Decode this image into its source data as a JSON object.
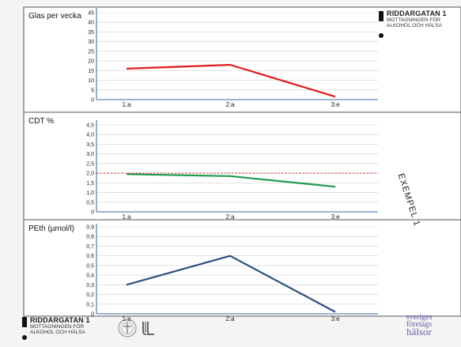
{
  "chart_data": [
    {
      "type": "line",
      "title": "Glas per vecka",
      "categories": [
        "1:a",
        "2:a",
        "3:e"
      ],
      "yticks": [
        "0",
        "5",
        "10",
        "15",
        "20",
        "25",
        "30",
        "35",
        "40",
        "45"
      ],
      "ylim": [
        0,
        45
      ],
      "series": [
        {
          "values": [
            16,
            18,
            1.5
          ]
        }
      ],
      "colors": {
        "line": "#e01a1a"
      },
      "grid": true
    },
    {
      "type": "line",
      "title": "CDT %",
      "categories": [
        "1:a",
        "2:a",
        "3:e"
      ],
      "yticks": [
        "0",
        "0,5",
        "1,0",
        "1,5",
        "2,0",
        "2,5",
        "3,0",
        "3,5",
        "4,0",
        "4,5"
      ],
      "ylim": [
        0,
        4.5
      ],
      "series": [
        {
          "values": [
            1.95,
            1.85,
            1.3
          ]
        }
      ],
      "reference_line": {
        "value": 2.0,
        "color": "#cc1b1b",
        "style": "dashed"
      },
      "colors": {
        "line": "#1f9a4f"
      },
      "grid": true
    },
    {
      "type": "line",
      "title": "PEth (µmol/l)",
      "categories": [
        "1:a",
        "2:a",
        "3:e"
      ],
      "yticks": [
        "0",
        "0,1",
        "0,2",
        "0,3",
        "0,4",
        "0,5",
        "0,6",
        "0,7",
        "0,8",
        "0,9"
      ],
      "ylim": [
        0,
        0.9
      ],
      "series": [
        {
          "values": [
            0.3,
            0.6,
            0.02
          ]
        }
      ],
      "colors": {
        "line": "#2d4f7f"
      },
      "grid": true
    }
  ],
  "logo_top": {
    "name": "RIDDARGATAN 1",
    "line1": "MOTTAGNINGEN FÖR",
    "line2": "ALKOHOL OCH HÄLSA"
  },
  "logo_bottom": {
    "name": "RIDDARGATAN 1",
    "line1": "MOTTAGNINGEN FÖR",
    "line2": "ALKOHOL OCH HÄLSA"
  },
  "side_label": "EXEMPEL 1",
  "sfh_logo": {
    "line1": "sveriges",
    "line2": "företags",
    "line3": "hälsor"
  },
  "icons": {
    "crest": "crest-icon",
    "jl": "jl-logo-icon"
  },
  "colors": {
    "axis_blue": "#7b9cc2",
    "grid": "#cfcfcf",
    "frame": "#555555"
  }
}
